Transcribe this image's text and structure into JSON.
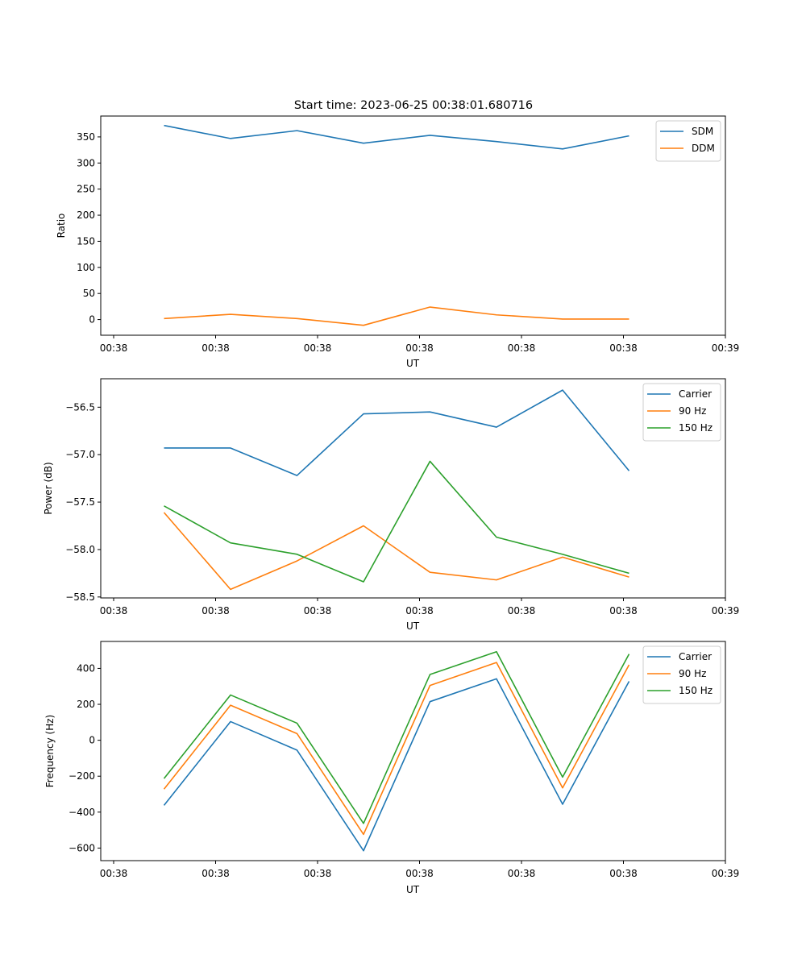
{
  "figure": {
    "title": "Start time: 2023-06-25 00:38:01.680716",
    "colors": {
      "blue": "#1f77b4",
      "orange": "#ff7f0e",
      "green": "#2ca02c"
    }
  },
  "chart_data": [
    {
      "type": "line",
      "title": "Start time: 2023-06-25 00:38:01.680716",
      "xlabel": "UT",
      "ylabel": "Ratio",
      "x_tick_labels": [
        "00:38",
        "00:38",
        "00:38",
        "00:38",
        "00:38",
        "00:38",
        "00:39"
      ],
      "y_ticks": [
        0,
        50,
        100,
        150,
        200,
        250,
        300,
        350
      ],
      "ylim": [
        -30,
        390
      ],
      "legend": "top-right",
      "grid": false,
      "series": [
        {
          "name": "SDM",
          "color": "#1f77b4",
          "values": [
            372,
            347,
            362,
            338,
            353,
            341,
            327,
            352
          ]
        },
        {
          "name": "DDM",
          "color": "#ff7f0e",
          "values": [
            2,
            10,
            2,
            -11,
            24,
            9,
            1,
            1
          ]
        }
      ]
    },
    {
      "type": "line",
      "title": "",
      "xlabel": "UT",
      "ylabel": "Power (dB)",
      "x_tick_labels": [
        "00:38",
        "00:38",
        "00:38",
        "00:38",
        "00:38",
        "00:38",
        "00:39"
      ],
      "y_ticks": [
        -58.5,
        -58.0,
        -57.5,
        -57.0,
        -56.5
      ],
      "y_tick_labels": [
        "−58.5",
        "−58.0",
        "−57.5",
        "−57.0",
        "−56.5"
      ],
      "ylim": [
        -58.51,
        -56.2
      ],
      "legend": "top-right",
      "grid": false,
      "series": [
        {
          "name": "Carrier",
          "color": "#1f77b4",
          "values": [
            -56.93,
            -56.93,
            -57.22,
            -56.57,
            -56.55,
            -56.71,
            -56.32,
            -57.17
          ]
        },
        {
          "name": "90 Hz",
          "color": "#ff7f0e",
          "values": [
            -57.61,
            -58.42,
            -58.12,
            -57.75,
            -58.24,
            -58.32,
            -58.08,
            -58.29
          ]
        },
        {
          "name": "150 Hz",
          "color": "#2ca02c",
          "values": [
            -57.54,
            -57.93,
            -58.05,
            -58.34,
            -57.07,
            -57.87,
            -58.05,
            -58.25
          ]
        }
      ]
    },
    {
      "type": "line",
      "title": "",
      "xlabel": "UT",
      "ylabel": "Frequency (Hz)",
      "x_tick_labels": [
        "00:38",
        "00:38",
        "00:38",
        "00:38",
        "00:38",
        "00:38",
        "00:39"
      ],
      "y_ticks": [
        -600,
        -400,
        -200,
        0,
        200,
        400
      ],
      "y_tick_labels": [
        "−600",
        "−400",
        "−200",
        "0",
        "200",
        "400"
      ],
      "ylim": [
        -670,
        550
      ],
      "legend": "top-right",
      "grid": false,
      "series": [
        {
          "name": "Carrier",
          "color": "#1f77b4",
          "values": [
            -362,
            104,
            -55,
            -615,
            215,
            342,
            -356,
            328
          ]
        },
        {
          "name": "90 Hz",
          "color": "#ff7f0e",
          "values": [
            -272,
            195,
            37,
            -524,
            305,
            433,
            -265,
            420
          ]
        },
        {
          "name": "150 Hz",
          "color": "#2ca02c",
          "values": [
            -213,
            252,
            95,
            -463,
            366,
            493,
            -205,
            480
          ]
        }
      ]
    }
  ]
}
